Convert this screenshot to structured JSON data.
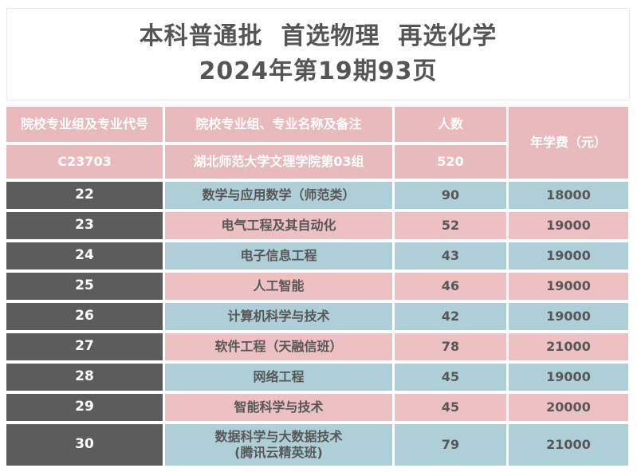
{
  "title": {
    "line1": "本科普通批  首选物理  再选化学",
    "line2": "2024年第19期93页"
  },
  "table": {
    "headers": {
      "col_code": "院校专业组及专业代号",
      "col_name": "院校专业组、专业名称及备注",
      "col_count": "人数",
      "col_fee": "年学费（元）"
    },
    "group": {
      "code": "C23703",
      "name": "湖北师范大学文理学院第03组",
      "count": "520"
    },
    "rows": [
      {
        "code": "22",
        "major": "数学与应用数学（师范类）",
        "count": "90",
        "fee": "18000"
      },
      {
        "code": "23",
        "major": "电气工程及其自动化",
        "count": "52",
        "fee": "19000"
      },
      {
        "code": "24",
        "major": "电子信息工程",
        "count": "43",
        "fee": "19000"
      },
      {
        "code": "25",
        "major": "人工智能",
        "count": "46",
        "fee": "19000"
      },
      {
        "code": "26",
        "major": "计算机科学与技术",
        "count": "42",
        "fee": "19000"
      },
      {
        "code": "27",
        "major": "软件工程（天融信班）",
        "count": "78",
        "fee": "21000"
      },
      {
        "code": "28",
        "major": "网络工程",
        "count": "45",
        "fee": "19000"
      },
      {
        "code": "29",
        "major": "智能科学与技术",
        "count": "45",
        "fee": "20000"
      },
      {
        "code": "30",
        "major": "数据科学与大数据技术",
        "note": "(腾讯云精英班)",
        "count": "79",
        "fee": "21000"
      }
    ],
    "colors": {
      "header_pink": "#e9babd",
      "row_pink": "#edc1c3",
      "row_blue": "#aecfd8",
      "code_cell_dark": "#5c5c5c",
      "text_dark": "#575757",
      "text_white": "#ffffff"
    }
  }
}
